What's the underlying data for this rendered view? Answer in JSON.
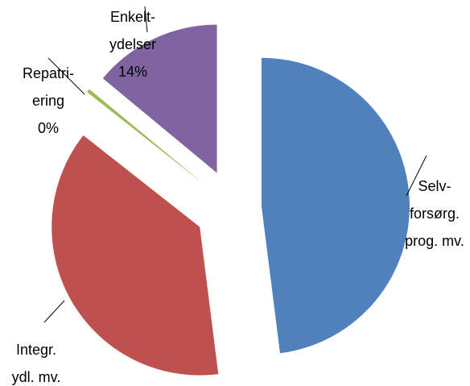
{
  "chart_data": {
    "type": "pie",
    "categories": [
      [
        "Selv-",
        "forsørg.",
        "prog. mv."
      ],
      [
        "Integr.",
        "ydl. mv."
      ],
      [
        "Repatri-",
        "ering"
      ],
      [
        "Enkelt-",
        "ydelser"
      ]
    ],
    "values": [
      48,
      37.6,
      0.4,
      14
    ],
    "value_labels": [
      null,
      null,
      "0%",
      "14%"
    ],
    "colors": [
      "#4f81bd",
      "#c0504d",
      "#9bbb59",
      "#8064a2"
    ]
  }
}
